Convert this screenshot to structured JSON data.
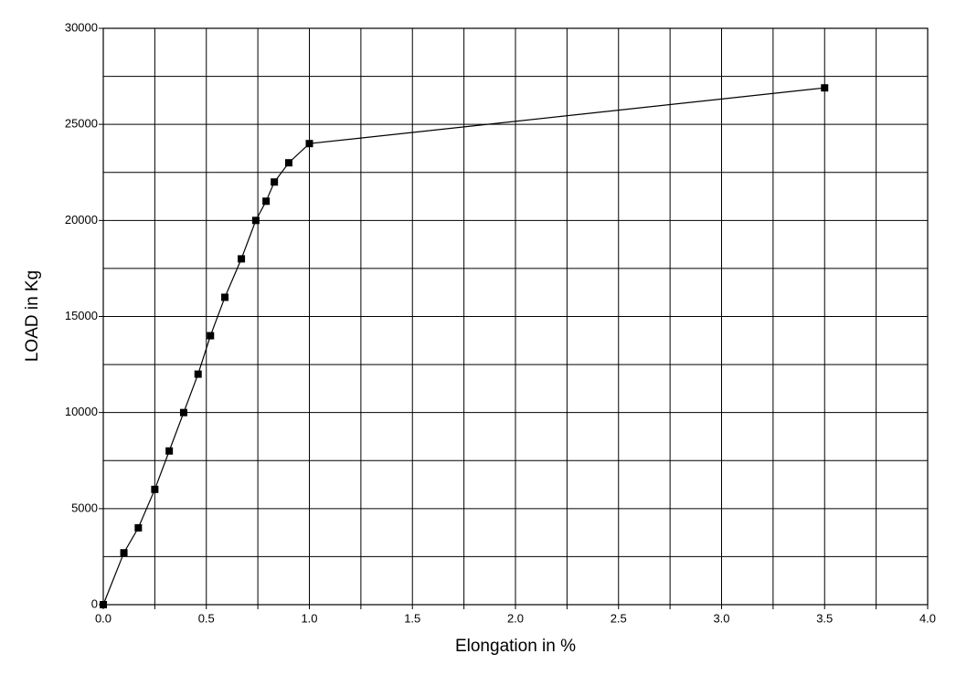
{
  "chart_data": {
    "type": "line",
    "xlabel": "Elongation in  %",
    "ylabel": "LOAD in Kg",
    "x": [
      0,
      0.1,
      0.17,
      0.25,
      0.32,
      0.39,
      0.46,
      0.52,
      0.59,
      0.67,
      0.74,
      0.79,
      0.83,
      0.9,
      1.0,
      3.5
    ],
    "series": [
      {
        "color": "#000000",
        "values": [
          0,
          2700,
          4000,
          6000,
          8000,
          10000,
          12000,
          14000,
          16000,
          18000,
          20000,
          21000,
          22000,
          23000,
          24000,
          26900
        ]
      }
    ],
    "xlim": [
      0,
      4
    ],
    "ylim": [
      0,
      30000
    ],
    "xticks": [
      {
        "value": 0,
        "label": "0.0"
      },
      {
        "value": 0.5,
        "label": "0.5"
      },
      {
        "value": 1,
        "label": "1.0"
      },
      {
        "value": 1.5,
        "label": "1.5"
      },
      {
        "value": 2,
        "label": "2.0"
      },
      {
        "value": 2.5,
        "label": "2.5"
      },
      {
        "value": 3,
        "label": "3.0"
      },
      {
        "value": 3.5,
        "label": "3.5"
      },
      {
        "value": 4,
        "label": "4.0"
      }
    ],
    "yticks": [
      0,
      5000,
      10000,
      15000,
      20000,
      25000,
      30000
    ],
    "xminor": [
      0.25,
      0.75,
      1.25,
      1.75,
      2.25,
      2.75,
      3.25,
      3.75
    ],
    "yminor": [
      2500,
      7500,
      12500,
      17500,
      22500,
      27500
    ],
    "grid": true,
    "marker": "square"
  }
}
